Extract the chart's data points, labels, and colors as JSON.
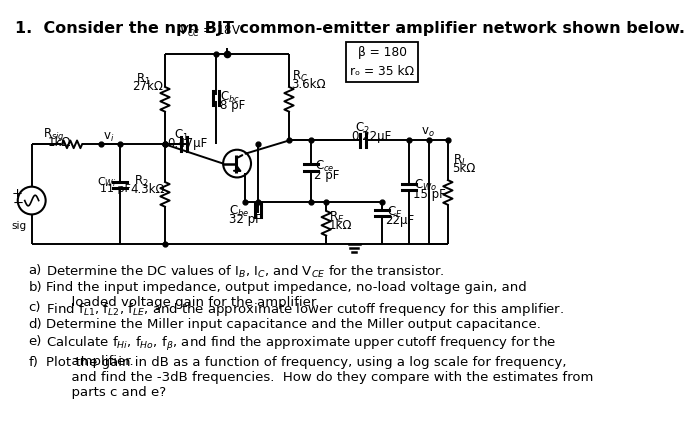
{
  "bg": "#ffffff",
  "title": "1.  Consider the npn BJT common-emitter amplifier network shown below.",
  "title_fs": 11.5,
  "vcc_label": "$V_{CC}$ = 18V",
  "beta_label": "β = 180\nrₒ = 35 kΩ",
  "r1_label": [
    "R$_1$",
    "27kΩ"
  ],
  "r2_label": [
    "R$_2$",
    "4.3kΩ"
  ],
  "rc_label": [
    "R$_C$",
    "3.6kΩ"
  ],
  "rl_label": [
    "R$_L$",
    "5kΩ"
  ],
  "rsig_label": [
    "R$_{sig}$",
    "1kΩ"
  ],
  "re_label": [
    "R$_E$",
    "1kΩ"
  ],
  "c1_label": [
    "C$_1$",
    "0.47μF"
  ],
  "c2_label": [
    "C$_2$",
    "0.22μF"
  ],
  "cbc_label": [
    "C$_{bc}$",
    "8 pF"
  ],
  "cbe_label": [
    "C$_{be}$",
    "32 pF"
  ],
  "cce_label": [
    "C$_{ce}$",
    "2 pF"
  ],
  "cwi_label": [
    "C$_{Wi}$",
    "11 pF"
  ],
  "cwo_label": [
    "C$_{Wo}$",
    "15 pF"
  ],
  "ce_label": [
    "C$_E$",
    "22μF"
  ],
  "vi_label": "v$_i$",
  "vo_label": "v$_o$",
  "sig_label": "sig",
  "questions": [
    [
      "a)",
      "Determine the DC values of I$_B$, I$_C$, and V$_{CE}$ for the transistor."
    ],
    [
      "b)",
      "Find the input impedance, output impedance, no-load voltage gain, and\n      loaded voltage gain for the amplifier."
    ],
    [
      "c)",
      "Find f$_{L1}$, f$_{L2}$, f$_{LE}$, and the approximate lower cutoff frequency for this amplifier."
    ],
    [
      "d)",
      "Determine the Miller input capacitance and the Miller output capacitance."
    ],
    [
      "e)",
      "Calculate f$_{Hi}$, f$_{Ho}$, f$_\\beta$, and find the approximate upper cutoff frequency for the\n      amplifier."
    ],
    [
      "f)",
      "Plot the gain in dB as a function of frequency, using a log scale for frequency,\n      and find the -3dB frequencies.  How do they compare with the estimates from\n      parts c and e?"
    ]
  ]
}
